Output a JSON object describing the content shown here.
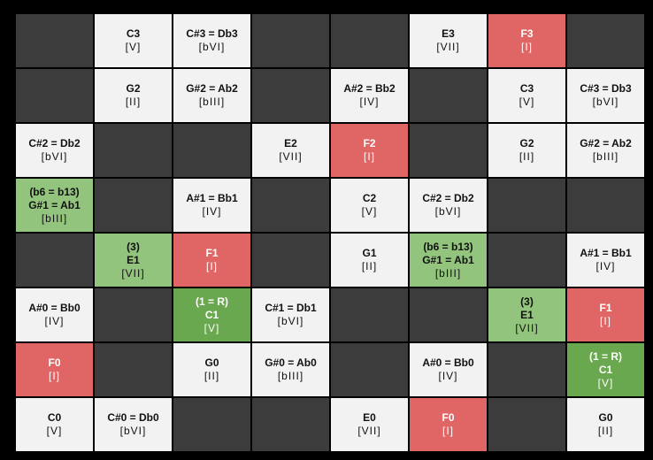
{
  "grid": {
    "rows": [
      [
        {
          "style": "dark"
        },
        {
          "style": "white",
          "lines": [
            "C3",
            "[V]"
          ]
        },
        {
          "style": "white",
          "lines": [
            "C#3 = Db3",
            "[bVI]"
          ]
        },
        {
          "style": "dark"
        },
        {
          "style": "dark"
        },
        {
          "style": "white",
          "lines": [
            "E3",
            "[VII]"
          ]
        },
        {
          "style": "red",
          "lines": [
            "F3",
            "[I]"
          ]
        },
        {
          "style": "dark"
        }
      ],
      [
        {
          "style": "dark"
        },
        {
          "style": "white",
          "lines": [
            "G2",
            "[II]"
          ]
        },
        {
          "style": "white",
          "lines": [
            "G#2 = Ab2",
            "[bIII]"
          ]
        },
        {
          "style": "dark"
        },
        {
          "style": "white",
          "lines": [
            "A#2 = Bb2",
            "[IV]"
          ]
        },
        {
          "style": "dark"
        },
        {
          "style": "white",
          "lines": [
            "C3",
            "[V]"
          ]
        },
        {
          "style": "white",
          "lines": [
            "C#3 = Db3",
            "[bVI]"
          ]
        }
      ],
      [
        {
          "style": "white",
          "lines": [
            "C#2 = Db2",
            "[bVI]"
          ]
        },
        {
          "style": "dark"
        },
        {
          "style": "dark"
        },
        {
          "style": "white",
          "lines": [
            "E2",
            "[VII]"
          ]
        },
        {
          "style": "red",
          "lines": [
            "F2",
            "[I]"
          ]
        },
        {
          "style": "dark"
        },
        {
          "style": "white",
          "lines": [
            "G2",
            "[II]"
          ]
        },
        {
          "style": "white",
          "lines": [
            "G#2 = Ab2",
            "[bIII]"
          ]
        }
      ],
      [
        {
          "style": "lightgreen",
          "lines": [
            "(b6 = b13)",
            "G#1 = Ab1",
            "[bIII]"
          ]
        },
        {
          "style": "dark"
        },
        {
          "style": "white",
          "lines": [
            "A#1 = Bb1",
            "[IV]"
          ]
        },
        {
          "style": "dark"
        },
        {
          "style": "white",
          "lines": [
            "C2",
            "[V]"
          ]
        },
        {
          "style": "white",
          "lines": [
            "C#2 = Db2",
            "[bVI]"
          ]
        },
        {
          "style": "dark"
        },
        {
          "style": "dark"
        }
      ],
      [
        {
          "style": "dark"
        },
        {
          "style": "lightgreen",
          "lines": [
            "(3)",
            "E1",
            "[VII]"
          ]
        },
        {
          "style": "red",
          "lines": [
            "F1",
            "[I]"
          ]
        },
        {
          "style": "dark"
        },
        {
          "style": "white",
          "lines": [
            "G1",
            "[II]"
          ]
        },
        {
          "style": "lightgreen",
          "lines": [
            "(b6 = b13)",
            "G#1 = Ab1",
            "[bIII]"
          ]
        },
        {
          "style": "dark"
        },
        {
          "style": "white",
          "lines": [
            "A#1 = Bb1",
            "[IV]"
          ]
        }
      ],
      [
        {
          "style": "white",
          "lines": [
            "A#0 = Bb0",
            "[IV]"
          ]
        },
        {
          "style": "dark"
        },
        {
          "style": "green",
          "lines": [
            "(1 = R)",
            "C1",
            "[V]"
          ]
        },
        {
          "style": "white",
          "lines": [
            "C#1 = Db1",
            "[bVI]"
          ]
        },
        {
          "style": "dark"
        },
        {
          "style": "dark"
        },
        {
          "style": "lightgreen",
          "lines": [
            "(3)",
            "E1",
            "[VII]"
          ]
        },
        {
          "style": "red",
          "lines": [
            "F1",
            "[I]"
          ]
        }
      ],
      [
        {
          "style": "red",
          "lines": [
            "F0",
            "[I]"
          ]
        },
        {
          "style": "dark"
        },
        {
          "style": "white",
          "lines": [
            "G0",
            "[II]"
          ]
        },
        {
          "style": "white",
          "lines": [
            "G#0 = Ab0",
            "[bIII]"
          ]
        },
        {
          "style": "dark"
        },
        {
          "style": "white",
          "lines": [
            "A#0 = Bb0",
            "[IV]"
          ]
        },
        {
          "style": "dark"
        },
        {
          "style": "green",
          "lines": [
            "(1 = R)",
            "C1",
            "[V]"
          ]
        }
      ],
      [
        {
          "style": "white",
          "lines": [
            "C0",
            "[V]"
          ]
        },
        {
          "style": "white",
          "lines": [
            "C#0 = Db0",
            "[bVI]"
          ]
        },
        {
          "style": "dark"
        },
        {
          "style": "dark"
        },
        {
          "style": "white",
          "lines": [
            "E0",
            "[VII]"
          ]
        },
        {
          "style": "red",
          "lines": [
            "F0",
            "[I]"
          ]
        },
        {
          "style": "dark"
        },
        {
          "style": "white",
          "lines": [
            "G0",
            "[II]"
          ]
        }
      ]
    ]
  }
}
